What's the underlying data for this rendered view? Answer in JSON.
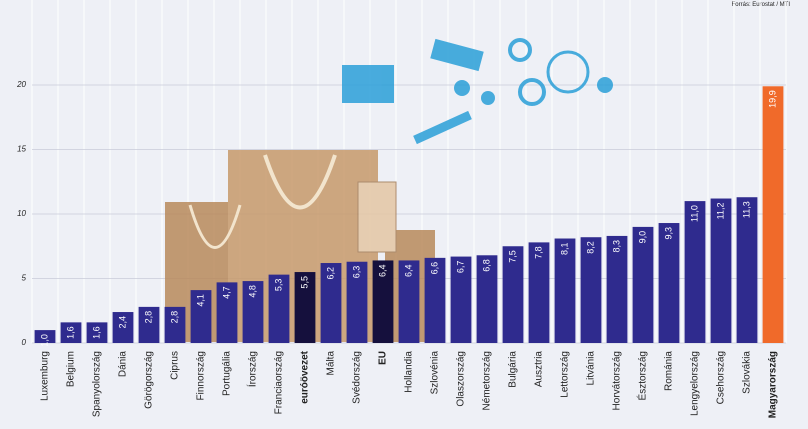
{
  "chart_data": {
    "type": "bar",
    "source": "Forrás: Eurostat / MTI",
    "categories": [
      "Luxemburg",
      "Belgium",
      "Spanyolország",
      "Dánia",
      "Görögország",
      "Ciprus",
      "Finnország",
      "Portugália",
      "Írország",
      "Franciaország",
      "euróövezet",
      "Málta",
      "Svédország",
      "EU",
      "Hollandia",
      "Szlovénia",
      "Olaszország",
      "Németország",
      "Bulgária",
      "Ausztria",
      "Lettország",
      "Litvánia",
      "Horvátország",
      "Észtország",
      "Románia",
      "Lengyelország",
      "Csehország",
      "Szlovákia",
      "Magyarország"
    ],
    "values": [
      1.0,
      1.6,
      1.6,
      2.4,
      2.8,
      2.8,
      4.1,
      4.7,
      4.8,
      5.3,
      5.5,
      6.2,
      6.3,
      6.4,
      6.4,
      6.6,
      6.7,
      6.8,
      7.5,
      7.8,
      8.1,
      8.2,
      8.3,
      9.0,
      9.3,
      11.0,
      11.2,
      11.3,
      19.9
    ],
    "value_labels": [
      "1,0",
      "1,6",
      "1,6",
      "2,4",
      "2,8",
      "2,8",
      "4,1",
      "4,7",
      "4,8",
      "5,3",
      "5,5",
      "6,2",
      "6,3",
      "6,4",
      "6,4",
      "6,6",
      "6,7",
      "6,8",
      "7,5",
      "7,8",
      "8,1",
      "8,2",
      "8,3",
      "9,0",
      "9,3",
      "11,0",
      "11,2",
      "11,3",
      "19,9"
    ],
    "color": "#2f2b8e",
    "colors": [
      "#2f2b8e",
      "#2f2b8e",
      "#2f2b8e",
      "#2f2b8e",
      "#2f2b8e",
      "#2f2b8e",
      "#2f2b8e",
      "#2f2b8e",
      "#2f2b8e",
      "#2f2b8e",
      "#15103d",
      "#2f2b8e",
      "#2f2b8e",
      "#15103d",
      "#2f2b8e",
      "#2f2b8e",
      "#2f2b8e",
      "#2f2b8e",
      "#2f2b8e",
      "#2f2b8e",
      "#2f2b8e",
      "#2f2b8e",
      "#2f2b8e",
      "#2f2b8e",
      "#2f2b8e",
      "#2f2b8e",
      "#2f2b8e",
      "#2f2b8e",
      "#f06a2a"
    ],
    "ylim": [
      0,
      20
    ],
    "yticks": [
      0,
      5,
      10,
      15,
      20
    ],
    "grid": true
  }
}
